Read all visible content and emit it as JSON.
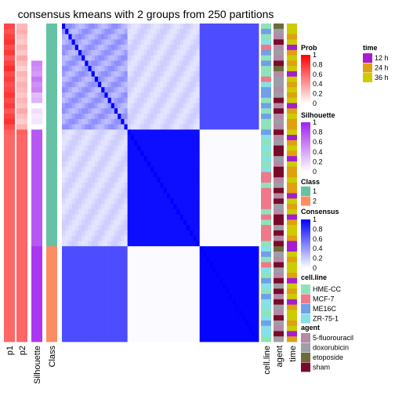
{
  "chart_data": {
    "type": "heatmap",
    "title": "consensus kmeans with 2 groups from 250 partitions",
    "n_samples": 60,
    "annotation_left": [
      {
        "name": "p1",
        "kind": "prob_group1"
      },
      {
        "name": "p2",
        "kind": "prob_group2"
      },
      {
        "name": "Silhouette",
        "kind": "silhouette"
      },
      {
        "name": "Class",
        "kind": "class"
      }
    ],
    "annotation_right": [
      {
        "name": "cell.line"
      },
      {
        "name": "agent"
      },
      {
        "name": "time"
      }
    ],
    "class": [
      1,
      1,
      1,
      1,
      1,
      1,
      1,
      1,
      1,
      1,
      1,
      1,
      1,
      1,
      1,
      1,
      1,
      1,
      1,
      1,
      1,
      1,
      1,
      1,
      1,
      1,
      1,
      1,
      1,
      1,
      1,
      1,
      1,
      1,
      1,
      1,
      1,
      1,
      1,
      1,
      1,
      1,
      2,
      2,
      2,
      2,
      2,
      2,
      2,
      2,
      2,
      2,
      2,
      2,
      2,
      2,
      2,
      2,
      2,
      2
    ],
    "class_display_order": [
      2,
      2,
      2,
      2,
      2,
      2,
      2,
      2,
      2,
      2,
      2,
      2,
      2,
      2,
      2,
      2,
      2,
      2,
      2,
      2,
      2,
      2,
      2,
      2,
      2,
      2,
      2,
      2,
      2,
      2,
      2,
      2,
      2,
      2,
      2,
      2,
      2,
      2,
      2,
      2,
      2,
      2,
      1,
      1,
      1,
      1,
      1,
      1,
      1,
      1,
      1,
      1,
      1,
      1,
      1,
      1,
      1,
      1,
      1,
      1
    ],
    "p1": [
      0.72,
      0.68,
      0.75,
      0.8,
      0.7,
      0.78,
      0.65,
      0.74,
      0.82,
      0.7,
      0.76,
      0.69,
      0.73,
      0.79,
      0.71,
      0.77,
      0.66,
      0.74,
      0.81,
      0.7,
      0.62,
      0.6,
      0.6,
      0.6,
      0.6,
      0.6,
      0.6,
      0.6,
      0.6,
      0.6,
      0.6,
      0.6,
      0.6,
      0.6,
      0.6,
      0.6,
      0.6,
      0.6,
      0.6,
      0.6,
      0.6,
      0.6,
      0.6,
      0.6,
      0.6,
      0.6,
      0.6,
      0.6,
      0.6,
      0.6,
      0.6,
      0.6,
      0.6,
      0.6,
      0.6,
      0.6,
      0.6,
      0.6,
      0.6,
      0.6
    ],
    "p2": [
      0.28,
      0.32,
      0.25,
      0.2,
      0.3,
      0.22,
      0.35,
      0.26,
      0.18,
      0.3,
      0.24,
      0.31,
      0.27,
      0.21,
      0.29,
      0.23,
      0.34,
      0.26,
      0.19,
      0.3,
      0.62,
      0.6,
      0.6,
      0.6,
      0.6,
      0.6,
      0.6,
      0.6,
      0.6,
      0.6,
      0.6,
      0.6,
      0.6,
      0.6,
      0.6,
      0.6,
      0.6,
      0.6,
      0.6,
      0.6,
      0.6,
      0.6,
      0.6,
      0.6,
      0.6,
      0.6,
      0.6,
      0.6,
      0.6,
      0.6,
      0.6,
      0.6,
      0.6,
      0.6,
      0.6,
      0.6,
      0.6,
      0.6,
      0.6,
      0.6
    ],
    "silhouette": [
      0.0,
      0.0,
      0.0,
      0.0,
      0.0,
      0.0,
      0.0,
      0.55,
      0.5,
      0.45,
      0.6,
      0.5,
      0.55,
      0.3,
      0.35,
      0.0,
      0.15,
      0.1,
      0.12,
      0.0,
      0.75,
      0.75,
      0.75,
      0.75,
      0.75,
      0.75,
      0.75,
      0.75,
      0.75,
      0.75,
      0.75,
      0.75,
      0.75,
      0.75,
      0.75,
      0.75,
      0.75,
      0.75,
      0.75,
      0.75,
      0.75,
      0.75,
      0.9,
      0.9,
      0.9,
      0.9,
      0.9,
      0.9,
      0.9,
      0.9,
      0.9,
      0.9,
      0.9,
      0.9,
      0.9,
      0.9,
      0.9,
      0.9,
      0.9,
      0.9
    ],
    "block_consensus": {
      "within_A_top": 0.35,
      "within_A_bottom": 0.95,
      "within_B": 0.98,
      "A_top_to_A_bottom": 0.15,
      "A_top_to_B": 0.7,
      "A_bottom_to_B": 0.02
    },
    "row_groups": {
      "A_top": 20,
      "A_bottom": 22,
      "B": 18
    },
    "cell_line": [
      0,
      2,
      0,
      3,
      1,
      2,
      0,
      2,
      0,
      0,
      1,
      3,
      2,
      2,
      0,
      2,
      0,
      2,
      0,
      0,
      2,
      3,
      0,
      3,
      0,
      3,
      0,
      3,
      1,
      1,
      0,
      1,
      1,
      1,
      1,
      0,
      1,
      0,
      1,
      1,
      1,
      0,
      3,
      2,
      0,
      1,
      3,
      0,
      2,
      3,
      0,
      2,
      3,
      3,
      0,
      3,
      2,
      3,
      3,
      0
    ],
    "agent": [
      2,
      1,
      0,
      3,
      0,
      1,
      0,
      3,
      2,
      0,
      1,
      1,
      0,
      1,
      3,
      0,
      3,
      0,
      1,
      0,
      3,
      0,
      1,
      3,
      3,
      1,
      0,
      3,
      3,
      0,
      1,
      3,
      0,
      3,
      1,
      0,
      3,
      3,
      1,
      3,
      0,
      3,
      2,
      1,
      0,
      3,
      1,
      0,
      3,
      1,
      3,
      0,
      3,
      1,
      0,
      3,
      1,
      0,
      3,
      1
    ],
    "time": [
      2,
      2,
      1,
      2,
      0,
      1,
      2,
      1,
      2,
      0,
      2,
      1,
      2,
      1,
      2,
      0,
      1,
      2,
      1,
      1,
      2,
      0,
      1,
      2,
      1,
      0,
      2,
      1,
      1,
      2,
      1,
      1,
      0,
      2,
      1,
      2,
      0,
      1,
      2,
      2,
      1,
      0,
      0,
      2,
      1,
      2,
      2,
      1,
      0,
      2,
      1,
      2,
      0,
      1,
      2,
      2,
      1,
      2,
      0,
      1
    ],
    "legends": {
      "prob": {
        "title": "Prob",
        "ticks": [
          "1",
          "0.8",
          "0.6",
          "0.4",
          "0.2",
          "0"
        ]
      },
      "silhouette": {
        "title": "Silhouette",
        "ticks": [
          "1",
          "0.8",
          "0.6",
          "0.4",
          "0.2",
          "0"
        ]
      },
      "class": {
        "title": "Class",
        "labels": [
          "1",
          "2"
        ]
      },
      "consensus": {
        "title": "Consensus",
        "ticks": [
          "1",
          "0.8",
          "0.6",
          "0.4",
          "0.2",
          "0"
        ]
      },
      "cell_line": {
        "title": "cell.line",
        "labels": [
          "HME-CC",
          "MCF-7",
          "ME16C",
          "ZR-75-1"
        ]
      },
      "agent": {
        "title": "agent",
        "labels": [
          "5-fluorouracil",
          "doxorubicin",
          "etoposide",
          "sham"
        ]
      },
      "time": {
        "title": "time",
        "labels": [
          "12 h",
          "24 h",
          "36 h"
        ]
      }
    },
    "colors": {
      "prob_high": "#ff0000",
      "prob_low": "#ffffff",
      "silhouette_high": "#a020f0",
      "class": [
        "#66c2a5",
        "#fc8d62"
      ],
      "consensus_high": "#0000ff",
      "consensus_low": "#ffffff",
      "cell_line": [
        "#8fe3b9",
        "#f07888",
        "#6fa0e8",
        "#86e0e6"
      ],
      "agent": [
        "#b58aa6",
        "#9e9ea6",
        "#6e6a3a",
        "#7a0a2a"
      ],
      "time": [
        "#a61ccf",
        "#e0a010",
        "#cccc00"
      ]
    }
  }
}
